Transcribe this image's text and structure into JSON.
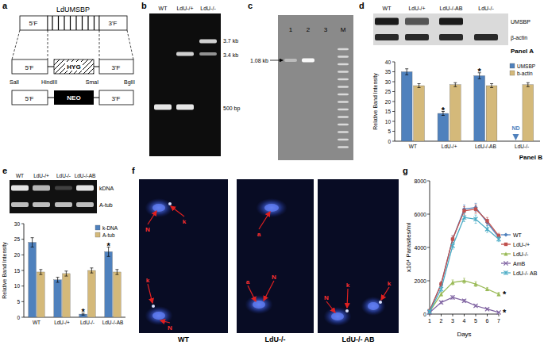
{
  "panel_labels": [
    "a",
    "b",
    "c",
    "d",
    "e",
    "f",
    "g"
  ],
  "panel_a": {
    "gene": "LdUMSBP",
    "flank_5": "5'F",
    "flank_3": "3'F",
    "hyg": "HYG",
    "neo": "NEO",
    "sites": [
      "SalI",
      "HindIII",
      "SmaI",
      "BglII"
    ]
  },
  "panel_b": {
    "lanes": [
      "WT",
      "LdU-/+",
      "LdU-/-"
    ],
    "sizes": [
      "3.7 kb",
      "3.4 kb",
      "500 bp"
    ]
  },
  "panel_c": {
    "lanes": [
      "1",
      "2",
      "3",
      "M"
    ],
    "size": "1.08 kb"
  },
  "panel_d": {
    "lanes": [
      "WT",
      "LdU-/+",
      "LdU-/-AB",
      "LdU-/-"
    ],
    "rows": [
      "UMSBP",
      "β-actin"
    ],
    "blot_title": "Panel A"
  },
  "panel_e": {
    "lanes": [
      "WT",
      "LdU-/+",
      "LdU-/-",
      "LdU-/-AB"
    ],
    "rows": [
      "kDNA",
      "A-tub"
    ]
  },
  "panel_f": {
    "images": [
      {
        "title": "WT",
        "arrows": [
          "N",
          "k",
          "k",
          "N"
        ]
      },
      {
        "title": "LdU-/-",
        "arrows": [
          "a",
          "a",
          "N"
        ]
      },
      {
        "title": "LdU-/- AB",
        "arrows": [
          "N",
          "k",
          "k"
        ]
      }
    ]
  },
  "chart_data": [
    {
      "type": "bar",
      "title": "Panel B",
      "y_label": "Relative Band Intensity",
      "categories": [
        "WT",
        "LdU-/+",
        "LdU-/-AB",
        "LdU-/-"
      ],
      "series": [
        {
          "name": "UMSBP",
          "color": "#4f81bd",
          "values": [
            35,
            14,
            33,
            null
          ],
          "error": [
            1.5,
            1,
            1.5,
            null
          ]
        },
        {
          "name": "b-actin",
          "color": "#d4b97a",
          "values": [
            28,
            28.5,
            28,
            28.5
          ],
          "error": [
            1,
            1,
            1,
            1
          ]
        }
      ],
      "ylim": [
        0,
        40
      ],
      "yticks": [
        0,
        5,
        10,
        15,
        20,
        25,
        30,
        35,
        40
      ],
      "grid": false,
      "legend": "upper right",
      "annotations": [
        {
          "text": "*",
          "series": 0,
          "index": 1
        },
        {
          "text": "*",
          "series": 0,
          "index": 2
        },
        {
          "text": "ND",
          "series": 0,
          "index": 3
        }
      ]
    },
    {
      "type": "bar",
      "y_label": "Relative Band Intensity",
      "categories": [
        "WT",
        "LdU-/+",
        "LdU-/-",
        "LdU-/-AB"
      ],
      "series": [
        {
          "name": "k-DNA",
          "color": "#4f81bd",
          "values": [
            24,
            12,
            1,
            21
          ],
          "error": [
            1.5,
            0.8,
            0.3,
            1.5
          ]
        },
        {
          "name": "A-tub",
          "color": "#d4b97a",
          "values": [
            14.5,
            14,
            15,
            14.5
          ],
          "error": [
            0.8,
            0.8,
            0.8,
            0.8
          ]
        }
      ],
      "ylim": [
        0,
        30
      ],
      "yticks": [
        0,
        5,
        10,
        15,
        20,
        25,
        30
      ],
      "grid": false,
      "legend": "upper right",
      "annotations": [
        {
          "text": "*",
          "series": 0,
          "index": 2
        },
        {
          "text": "*",
          "series": 0,
          "index": 3
        }
      ]
    },
    {
      "type": "line",
      "x_label": "Days",
      "y_label": "x10⁴ Parasites/ml",
      "x": [
        1,
        2,
        3,
        4,
        5,
        6,
        7
      ],
      "series": [
        {
          "name": "WT",
          "color": "#4f81bd",
          "marker": "diamond",
          "values": [
            200,
            1800,
            4500,
            6300,
            6400,
            5500,
            4600
          ],
          "error": [
            50,
            150,
            200,
            250,
            250,
            200,
            150
          ]
        },
        {
          "name": "LdU-/+",
          "color": "#c0504d",
          "marker": "square",
          "values": [
            200,
            1800,
            4500,
            6200,
            6300,
            5600,
            4700
          ],
          "error": [
            50,
            150,
            200,
            250,
            250,
            200,
            150
          ]
        },
        {
          "name": "LdU-/-",
          "color": "#9bbb59",
          "marker": "triangle",
          "values": [
            150,
            1200,
            1900,
            2000,
            1800,
            1500,
            1200
          ],
          "error": [
            50,
            100,
            150,
            150,
            150,
            100,
            100
          ]
        },
        {
          "name": "AmB",
          "color": "#8064a2",
          "marker": "x",
          "values": [
            100,
            700,
            1000,
            800,
            500,
            300,
            100
          ],
          "error": [
            30,
            80,
            100,
            80,
            60,
            50,
            30
          ]
        },
        {
          "name": "LdU-/- AB",
          "color": "#4bacc6",
          "marker": "star",
          "values": [
            150,
            1500,
            4100,
            5800,
            5700,
            5100,
            4500
          ],
          "error": [
            50,
            150,
            200,
            250,
            250,
            200,
            150
          ]
        }
      ],
      "xlim": [
        1,
        7
      ],
      "xticks": [
        1,
        2,
        3,
        4,
        5,
        6,
        7
      ],
      "ylim": [
        0,
        8000
      ],
      "yticks": [
        0,
        2000,
        4000,
        6000,
        8000
      ],
      "grid": false,
      "legend": "right",
      "annotations": [
        {
          "text": "*",
          "series": 2,
          "index": 6
        },
        {
          "text": "*",
          "series": 3,
          "index": 6
        }
      ]
    }
  ]
}
